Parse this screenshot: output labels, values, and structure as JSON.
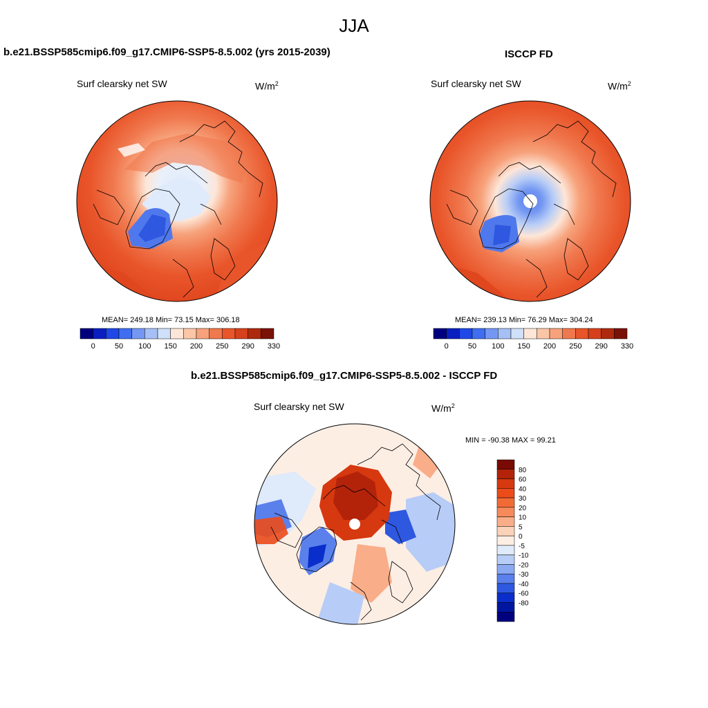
{
  "page_title": "JJA",
  "panels": [
    {
      "title": "b.e21.BSSP585cmip6.f09_g17.CMIP6-SSP5-8.5.002 (yrs 2015-2039)",
      "variable": "Surf clearsky net SW",
      "units_base": "W/m",
      "units_exp": "2",
      "stats": "MEAN= 249.18  Min=  73.15  Max= 306.18"
    },
    {
      "title": "ISCCP FD",
      "variable": "Surf clearsky net SW",
      "units_base": "W/m",
      "units_exp": "2",
      "stats": "MEAN= 239.13  Min=  76.29  Max= 304.24"
    },
    {
      "title": "b.e21.BSSP585cmip6.f09_g17.CMIP6-SSP5-8.5.002 - ISCCP FD",
      "variable": "Surf clearsky net SW",
      "units_base": "W/m",
      "units_exp": "2",
      "stats": "MIN = -90.38 MAX =  99.21"
    }
  ],
  "chart_data": [
    {
      "type": "heatmap",
      "title": "b.e21.BSSP585cmip6.f09_g17.CMIP6-SSP5-8.5.002 (yrs 2015-2039)",
      "projection": "north polar stereographic",
      "variable": "Surf clearsky net SW",
      "units": "W/m2",
      "mean": 249.18,
      "min": 73.15,
      "max": 306.18,
      "colorbar_levels": [
        0,
        50,
        100,
        150,
        200,
        250,
        290,
        330
      ],
      "colorbar_colors": [
        "#00007f",
        "#0a1fbf",
        "#1f48e6",
        "#3f6ff0",
        "#7397f2",
        "#a6bff5",
        "#cfe0f8",
        "#fde6d8",
        "#fbc6a8",
        "#f7a27b",
        "#f0784e",
        "#e9552a",
        "#d6401c",
        "#ad2a0e",
        "#7a1106"
      ]
    },
    {
      "type": "heatmap",
      "title": "ISCCP FD",
      "projection": "north polar stereographic",
      "variable": "Surf clearsky net SW",
      "units": "W/m2",
      "mean": 239.13,
      "min": 76.29,
      "max": 304.24,
      "colorbar_levels": [
        0,
        50,
        100,
        150,
        200,
        250,
        290,
        330
      ],
      "colorbar_colors": [
        "#00007f",
        "#0a1fbf",
        "#1f48e6",
        "#3f6ff0",
        "#7397f2",
        "#a6bff5",
        "#cfe0f8",
        "#fde6d8",
        "#fbc6a8",
        "#f7a27b",
        "#f0784e",
        "#e9552a",
        "#d6401c",
        "#ad2a0e",
        "#7a1106"
      ]
    },
    {
      "type": "heatmap",
      "title": "b.e21.BSSP585cmip6.f09_g17.CMIP6-SSP5-8.5.002 - ISCCP FD",
      "projection": "north polar stereographic",
      "variable": "Surf clearsky net SW",
      "units": "W/m2",
      "min": -90.38,
      "max": 99.21,
      "colorbar_levels": [
        80,
        60,
        40,
        30,
        20,
        10,
        5,
        0,
        -5,
        -10,
        -20,
        -30,
        -40,
        -60,
        -80
      ],
      "colorbar_colors": [
        "#7a0a04",
        "#b3230a",
        "#d6380f",
        "#ec4b1a",
        "#f26b35",
        "#f68a5a",
        "#f9ad88",
        "#fbd3b9",
        "#fdeee4",
        "#dfeafb",
        "#b7cdf7",
        "#8caaf2",
        "#5a80ec",
        "#2e58e0",
        "#0a2ecb",
        "#0016a0",
        "#00007f"
      ]
    }
  ],
  "colorbar_labels_top": [
    "0",
    "50",
    "100",
    "150",
    "200",
    "250",
    "290",
    "330"
  ],
  "colorbar_labels_diff": [
    "80",
    "60",
    "40",
    "30",
    "20",
    "10",
    "5",
    "0",
    "-5",
    "-10",
    "-20",
    "-30",
    "-40",
    "-60",
    "-80"
  ]
}
